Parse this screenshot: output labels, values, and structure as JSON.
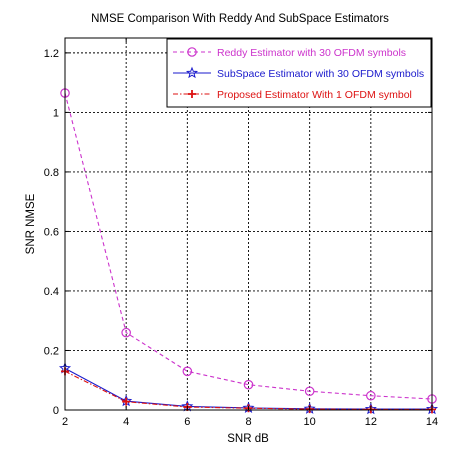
{
  "chart_data": {
    "type": "line",
    "title": "NMSE Comparison With Reddy And SubSpace Estimators",
    "xlabel": "SNR dB",
    "ylabel": "SNR NMSE",
    "xlim": [
      2,
      14
    ],
    "ylim": [
      0,
      1.25
    ],
    "xticks": [
      2,
      4,
      6,
      8,
      10,
      12,
      14
    ],
    "yticks": [
      0,
      0.2,
      0.4,
      0.6,
      0.8,
      1,
      1.2
    ],
    "ytick_labels": [
      "0",
      "0.2",
      "0.4",
      "0.6",
      "0.8",
      "1",
      "1.2"
    ],
    "grid": true,
    "legend_position": "top-right",
    "x": [
      2,
      4,
      6,
      8,
      10,
      12,
      14
    ],
    "series": [
      {
        "name": "Reddy Estimator with 30 OFDM symbols",
        "values": [
          1.065,
          0.26,
          0.13,
          0.085,
          0.063,
          0.048,
          0.037
        ],
        "color": "#cc33cc",
        "marker": "circle",
        "dash": "dashed"
      },
      {
        "name": "SubSpace Estimator with 30 OFDM symbols",
        "values": [
          0.14,
          0.03,
          0.012,
          0.007,
          0.004,
          0.003,
          0.003
        ],
        "color": "#1a1acc",
        "marker": "star",
        "dash": "solid"
      },
      {
        "name": "Proposed Estimator With 1 OFDM symbol",
        "values": [
          0.13,
          0.028,
          0.01,
          0.006,
          0.003,
          0.002,
          0.002
        ],
        "color": "#dd1111",
        "marker": "plus",
        "dash": "dashdot"
      }
    ]
  }
}
